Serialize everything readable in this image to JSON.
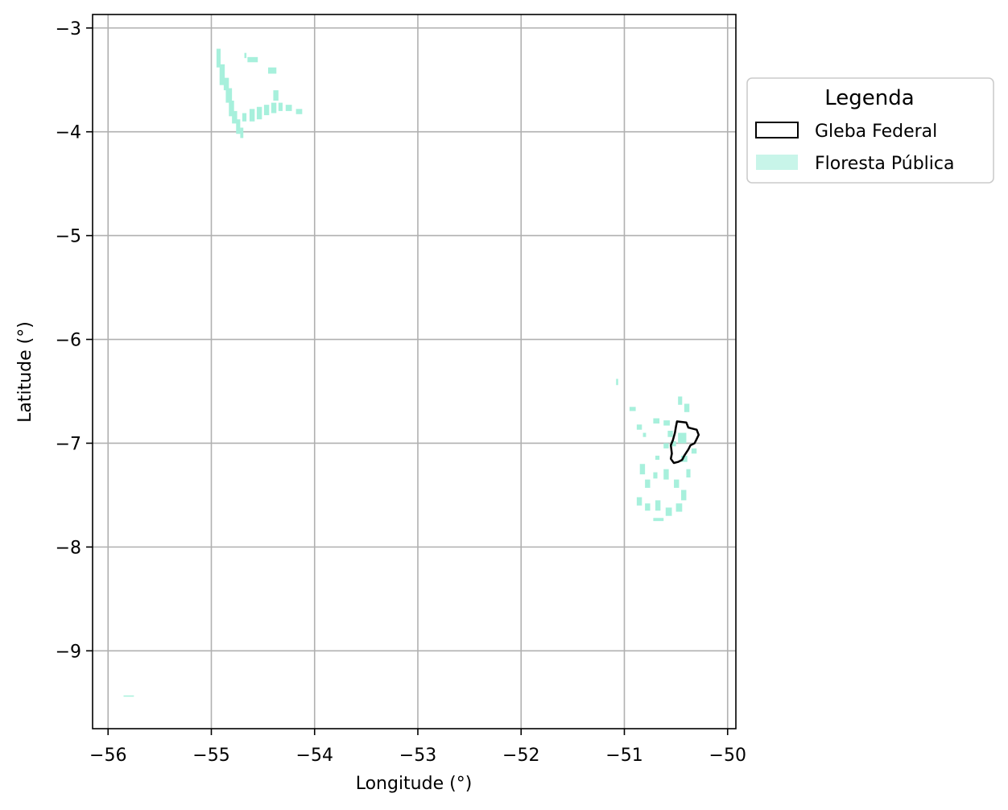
{
  "chart_data": {
    "type": "map",
    "xlabel": "Longitude (°)",
    "ylabel": "Latitude (°)",
    "xlim": [
      -56.15,
      -49.92
    ],
    "ylim": [
      -9.75,
      -2.87
    ],
    "xticks": [
      -56,
      -55,
      -54,
      -53,
      -52,
      -51,
      -50
    ],
    "yticks": [
      -3,
      -4,
      -5,
      -6,
      -7,
      -8,
      -9
    ],
    "xtick_labels": [
      "−56",
      "−55",
      "−54",
      "−53",
      "−52",
      "−51",
      "−50"
    ],
    "ytick_labels": [
      "−3",
      "−4",
      "−5",
      "−6",
      "−7",
      "−8",
      "−9"
    ],
    "grid": true,
    "legend": {
      "title": "Legenda",
      "placement": "outside-right-top",
      "entries": [
        {
          "label": "Gleba Federal",
          "style": "outline",
          "color": "#000000"
        },
        {
          "label": "Floresta Pública",
          "style": "fill",
          "color": "#c8f5e9"
        }
      ]
    },
    "layers": {
      "floresta_publica": {
        "fill_color": "#a7f0dc",
        "blocks": [
          [
            -54.95,
            -3.2,
            0.04,
            0.18
          ],
          [
            -54.92,
            -3.35,
            0.05,
            0.2
          ],
          [
            -54.88,
            -3.48,
            0.05,
            0.12
          ],
          [
            -54.86,
            -3.58,
            0.06,
            0.14
          ],
          [
            -54.83,
            -3.7,
            0.05,
            0.15
          ],
          [
            -54.8,
            -3.8,
            0.05,
            0.12
          ],
          [
            -54.76,
            -3.88,
            0.04,
            0.14
          ],
          [
            -54.72,
            -3.96,
            0.03,
            0.1
          ],
          [
            -54.68,
            -3.24,
            0.02,
            0.05
          ],
          [
            -54.65,
            -3.28,
            0.1,
            0.05
          ],
          [
            -54.45,
            -3.38,
            0.08,
            0.06
          ],
          [
            -54.4,
            -3.6,
            0.05,
            0.1
          ],
          [
            -54.7,
            -3.82,
            0.04,
            0.08
          ],
          [
            -54.63,
            -3.78,
            0.05,
            0.12
          ],
          [
            -54.56,
            -3.76,
            0.05,
            0.12
          ],
          [
            -54.49,
            -3.74,
            0.05,
            0.1
          ],
          [
            -54.42,
            -3.72,
            0.05,
            0.1
          ],
          [
            -54.35,
            -3.72,
            0.04,
            0.08
          ],
          [
            -54.28,
            -3.74,
            0.06,
            0.06
          ],
          [
            -54.18,
            -3.78,
            0.06,
            0.05
          ],
          [
            -51.08,
            -6.38,
            0.02,
            0.06
          ],
          [
            -50.95,
            -6.65,
            0.06,
            0.04
          ],
          [
            -50.88,
            -6.82,
            0.05,
            0.05
          ],
          [
            -50.82,
            -6.9,
            0.03,
            0.04
          ],
          [
            -50.72,
            -6.76,
            0.06,
            0.05
          ],
          [
            -50.62,
            -6.78,
            0.06,
            0.05
          ],
          [
            -50.58,
            -6.88,
            0.05,
            0.06
          ],
          [
            -50.48,
            -6.55,
            0.04,
            0.08
          ],
          [
            -50.42,
            -6.62,
            0.05,
            0.08
          ],
          [
            -50.48,
            -6.9,
            0.08,
            0.1
          ],
          [
            -50.55,
            -6.98,
            0.05,
            0.05
          ],
          [
            -50.35,
            -7.05,
            0.05,
            0.05
          ],
          [
            -50.45,
            -7.12,
            0.06,
            0.06
          ],
          [
            -50.62,
            -7.0,
            0.05,
            0.05
          ],
          [
            -50.7,
            -7.12,
            0.04,
            0.04
          ],
          [
            -50.85,
            -7.2,
            0.05,
            0.1
          ],
          [
            -50.8,
            -7.35,
            0.05,
            0.08
          ],
          [
            -50.72,
            -7.28,
            0.04,
            0.06
          ],
          [
            -50.62,
            -7.25,
            0.05,
            0.1
          ],
          [
            -50.52,
            -7.35,
            0.05,
            0.08
          ],
          [
            -50.45,
            -7.45,
            0.05,
            0.1
          ],
          [
            -50.88,
            -7.52,
            0.05,
            0.08
          ],
          [
            -50.8,
            -7.58,
            0.05,
            0.07
          ],
          [
            -50.7,
            -7.55,
            0.05,
            0.1
          ],
          [
            -50.6,
            -7.62,
            0.06,
            0.08
          ],
          [
            -50.5,
            -7.58,
            0.06,
            0.08
          ],
          [
            -50.72,
            -7.72,
            0.1,
            0.03
          ],
          [
            -50.4,
            -7.25,
            0.04,
            0.08
          ],
          [
            -55.85,
            -9.43,
            0.1,
            0.01
          ]
        ]
      },
      "gleba_federal": {
        "stroke_color": "#000000",
        "polygon": [
          [
            -50.49,
            -6.79
          ],
          [
            -50.4,
            -6.8
          ],
          [
            -50.38,
            -6.85
          ],
          [
            -50.3,
            -6.87
          ],
          [
            -50.28,
            -6.92
          ],
          [
            -50.3,
            -6.96
          ],
          [
            -50.32,
            -7.0
          ],
          [
            -50.36,
            -7.02
          ],
          [
            -50.38,
            -7.06
          ],
          [
            -50.42,
            -7.12
          ],
          [
            -50.44,
            -7.16
          ],
          [
            -50.48,
            -7.18
          ],
          [
            -50.52,
            -7.19
          ],
          [
            -50.55,
            -7.15
          ],
          [
            -50.54,
            -7.1
          ],
          [
            -50.55,
            -7.02
          ],
          [
            -50.53,
            -6.97
          ],
          [
            -50.51,
            -6.9
          ],
          [
            -50.5,
            -6.84
          ],
          [
            -50.49,
            -6.79
          ]
        ]
      }
    }
  }
}
